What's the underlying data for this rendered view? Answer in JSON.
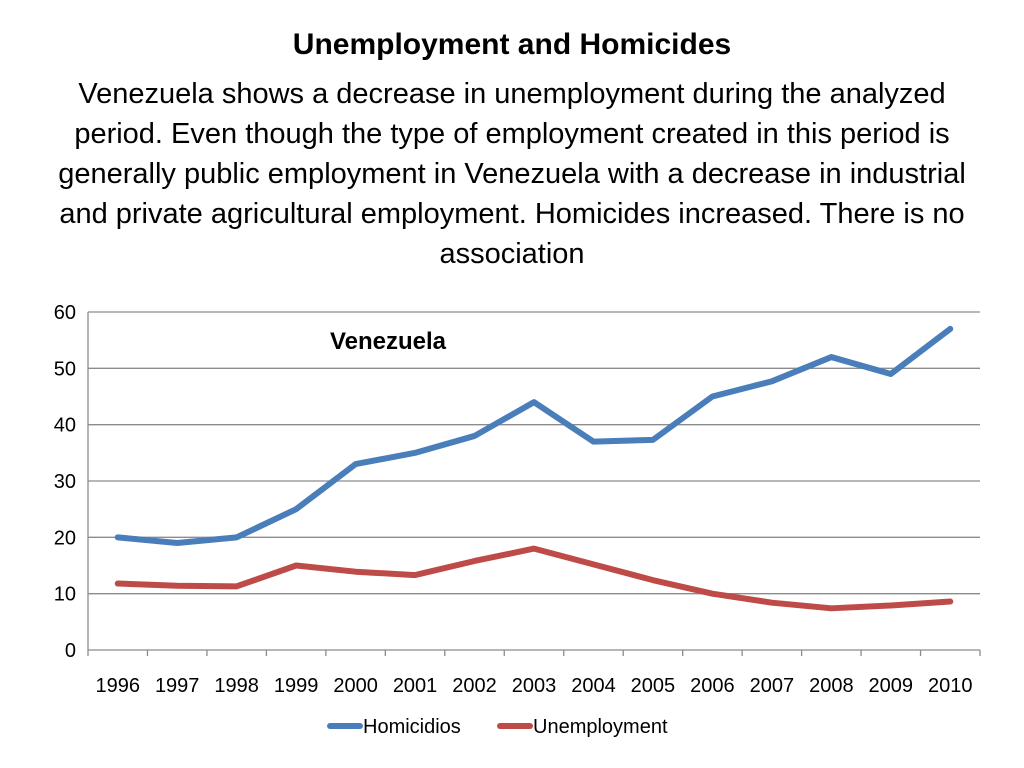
{
  "chart_data": {
    "type": "line",
    "title": "Unemployment and Homicides",
    "subtitle": "Venezuela shows a decrease in unemployment during the analyzed period. Even though the type of employment created in this period is generally public employment in Venezuela with a decrease in industrial and private agricultural employment. Homicides increased. There is no association",
    "annotation": "Venezuela",
    "categories": [
      "1996",
      "1997",
      "1998",
      "1999",
      "2000",
      "2001",
      "2002",
      "2003",
      "2004",
      "2005",
      "2006",
      "2007",
      "2008",
      "2009",
      "2010"
    ],
    "series": [
      {
        "name": "Homicidios",
        "color": "#4a7ebb",
        "values": [
          20,
          19,
          20,
          25,
          33,
          35,
          38,
          44,
          37,
          37.3,
          45,
          47.7,
          52,
          49,
          57
        ]
      },
      {
        "name": "Unemployment",
        "color": "#be4b48",
        "values": [
          11.8,
          11.4,
          11.3,
          15,
          13.9,
          13.3,
          15.8,
          18,
          15.2,
          12.4,
          10,
          8.4,
          7.4,
          7.9,
          8.6
        ]
      }
    ],
    "ylim": [
      0,
      60
    ],
    "yticks": [
      0,
      10,
      20,
      30,
      40,
      50,
      60
    ],
    "grid": true,
    "legend": "bottom"
  }
}
